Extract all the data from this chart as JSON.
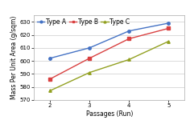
{
  "x": [
    2,
    3,
    4,
    5
  ],
  "type_a": [
    602,
    610,
    623,
    629
  ],
  "type_b": [
    586,
    602,
    617,
    625
  ],
  "type_c": [
    577,
    591,
    601,
    615
  ],
  "colors": {
    "Type A": "#4472C4",
    "Type B": "#D94040",
    "Type C": "#92A020"
  },
  "markers": {
    "Type A": "o",
    "Type B": "s",
    "Type C": "^"
  },
  "xlabel": "Passages (Run)",
  "ylabel": "Mass Per Unit Area (g/sqm)",
  "ylim": [
    570,
    635
  ],
  "yticks": [
    570,
    580,
    590,
    600,
    610,
    620,
    630
  ],
  "xticks": [
    2,
    3,
    4,
    5
  ],
  "axis_fontsize": 5.5,
  "tick_fontsize": 5,
  "legend_fontsize": 5.5
}
